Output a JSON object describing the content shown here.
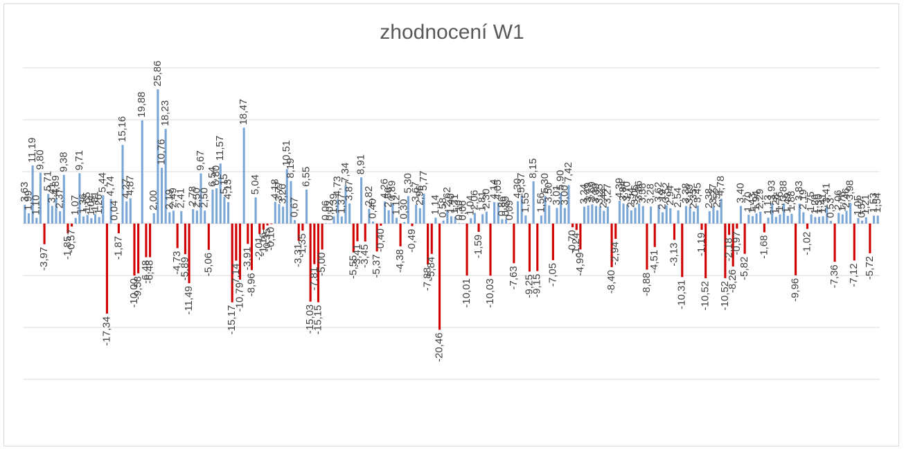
{
  "chart_data": {
    "type": "bar",
    "title": "zhodnocení W1",
    "ylim": [
      -30,
      30
    ],
    "y_gridlines": [
      -30,
      -20,
      -10,
      0,
      10,
      20,
      30
    ],
    "grid": true,
    "legend": "none",
    "value_label_decimal_separator": ",",
    "colors": {
      "positive": "#7ba7d7",
      "negative": "#d00000",
      "grid": "#d9d9d9",
      "label": "#404040"
    },
    "series": [
      {
        "values": [
          3.63,
          1.99,
          11.19,
          1.1,
          9.8,
          -3.97,
          5.71,
          3.41,
          4.89,
          2.37,
          9.38,
          -1.85,
          -0.57,
          1.07,
          9.71,
          1.36,
          1.65,
          1.04,
          1.81,
          1.26,
          5.44,
          -17.34,
          4.74,
          0.04,
          -1.87,
          15.16,
          4.27,
          4.87,
          -10.0,
          -9.58,
          19.88,
          -6.48,
          -6.48,
          2.0,
          25.86,
          10.76,
          18.23,
          2.19,
          2.49,
          -4.73,
          2.41,
          -5.89,
          -11.49,
          2.78,
          2.5,
          9.67,
          2.5,
          -5.06,
          6.54,
          6.8,
          11.57,
          5.15,
          4.13,
          -15.17,
          -7.14,
          -10.79,
          18.47,
          -3.91,
          -8.96,
          5.04,
          -2.01,
          -1.16,
          -0.35,
          -0.1,
          4.18,
          3.77,
          3.26,
          10.51,
          8.19,
          0.67,
          -3.31,
          -1.35,
          6.55,
          -15.03,
          -7.81,
          -15.15,
          -5.0,
          0.06,
          0.02,
          1.39,
          4.73,
          1.37,
          7.34,
          3.87,
          -5.55,
          -3.41,
          8.91,
          -3.45,
          2.82,
          0.4,
          -5.37,
          -0.4,
          4.26,
          2.56,
          3.89,
          1.12,
          -4.38,
          0.3,
          5.3,
          -0.49,
          3.67,
          2.96,
          5.77,
          -7.88,
          -5.84,
          1.14,
          -20.46,
          0.58,
          2.62,
          1.4,
          1.31,
          0.1,
          0.06,
          -10.01,
          1.04,
          2.06,
          -1.59,
          1.81,
          2.3,
          -10.03,
          4.14,
          4.05,
          0.86,
          0.89,
          0.09,
          -7.63,
          4.3,
          5.37,
          1.55,
          -9.25,
          8.15,
          -9.15,
          1.56,
          5.3,
          3.5,
          -7.05,
          3.01,
          5.9,
          3.0,
          7.42,
          -0.7,
          -1.24,
          -4.99,
          3.24,
          3.49,
          3.69,
          3.39,
          3.25,
          2.44,
          3.27,
          -8.4,
          -2.94,
          4.39,
          3.84,
          3.7,
          2.54,
          3.06,
          3.86,
          3.38,
          -8.88,
          3.28,
          -4.51,
          3.62,
          2.19,
          3.52,
          2.94,
          -3.13,
          2.54,
          -10.31,
          3.38,
          3.19,
          2.33,
          3.45,
          -1.19,
          -10.52,
          2.38,
          3.27,
          2.52,
          4.78,
          -10.52,
          -2.18,
          -8.26,
          -0.97,
          3.4,
          -5.82,
          1.7,
          1.43,
          1.94,
          2.29,
          -1.68,
          1.13,
          3.93,
          1.28,
          1.76,
          3.88,
          1.49,
          1.88,
          -9.96,
          3.83,
          2.19,
          -1.02,
          1.75,
          1.26,
          1.3,
          1.41,
          3.41,
          0.53,
          -7.36,
          2.06,
          1.76,
          2.46,
          3.98,
          -7.12,
          1.05,
          0.57,
          1.21,
          -5.72,
          1.53,
          1.54
        ]
      }
    ]
  }
}
